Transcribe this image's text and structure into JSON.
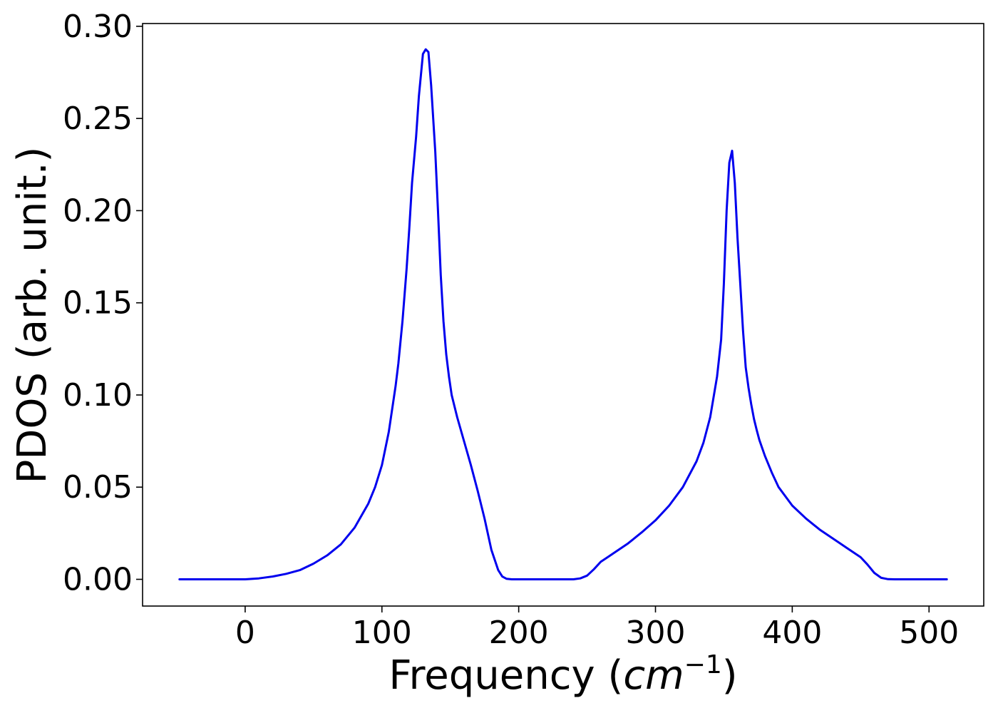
{
  "chart_data": {
    "type": "line",
    "xlabel": "Frequency (",
    "xlabel_unit": "cm",
    "xlabel_exponent": "−1",
    "xlabel_close": ")",
    "ylabel": "PDOS (arb. unit.)",
    "xlim": [
      -75,
      540
    ],
    "ylim": [
      -0.0145,
      0.3015
    ],
    "xticks": [
      0,
      100,
      200,
      300,
      400,
      500
    ],
    "xtick_labels": [
      "0",
      "100",
      "200",
      "300",
      "400",
      "500"
    ],
    "yticks": [
      0.0,
      0.05,
      0.1,
      0.15,
      0.2,
      0.25,
      0.3
    ],
    "ytick_labels": [
      "0.00",
      "0.05",
      "0.10",
      "0.15",
      "0.20",
      "0.25",
      "0.30"
    ],
    "grid": false,
    "line_color": "#0000ee",
    "series": [
      {
        "x": [
          -48,
          -20,
          0,
          10,
          20,
          30,
          40,
          50,
          60,
          70,
          80,
          90,
          95,
          100,
          105,
          110,
          112,
          115,
          118,
          120,
          122,
          125,
          127,
          130,
          132,
          134,
          136,
          139,
          141,
          143,
          145,
          147,
          149,
          151,
          155,
          160,
          165,
          170,
          175,
          180,
          185,
          188,
          191,
          195,
          200,
          210,
          220,
          230,
          240,
          245,
          250,
          255,
          260,
          265,
          270,
          280,
          290,
          300,
          310,
          320,
          330,
          335,
          340,
          345,
          348,
          350,
          352,
          354,
          356,
          358,
          360,
          362,
          364,
          366,
          368,
          370,
          372,
          374,
          376,
          380,
          385,
          390,
          400,
          410,
          420,
          430,
          440,
          450,
          455,
          460,
          465,
          470,
          475,
          480,
          490,
          500,
          513
        ],
        "y": [
          0.0,
          0.0,
          0.0,
          0.0005,
          0.0015,
          0.003,
          0.005,
          0.0085,
          0.013,
          0.019,
          0.028,
          0.041,
          0.05,
          0.062,
          0.08,
          0.105,
          0.117,
          0.14,
          0.168,
          0.19,
          0.215,
          0.24,
          0.262,
          0.285,
          0.2875,
          0.286,
          0.268,
          0.232,
          0.2,
          0.165,
          0.14,
          0.122,
          0.11,
          0.1,
          0.088,
          0.075,
          0.062,
          0.048,
          0.033,
          0.016,
          0.005,
          0.0015,
          0.0003,
          0.0,
          0.0,
          0.0,
          0.0,
          0.0,
          0.0,
          0.0005,
          0.002,
          0.0055,
          0.0095,
          0.012,
          0.0145,
          0.0195,
          0.0255,
          0.032,
          0.04,
          0.05,
          0.064,
          0.074,
          0.088,
          0.11,
          0.13,
          0.16,
          0.2,
          0.226,
          0.2325,
          0.215,
          0.185,
          0.16,
          0.135,
          0.115,
          0.104,
          0.095,
          0.087,
          0.081,
          0.0755,
          0.067,
          0.058,
          0.05,
          0.04,
          0.033,
          0.027,
          0.022,
          0.017,
          0.012,
          0.008,
          0.0035,
          0.0008,
          0.0001,
          0.0,
          0.0,
          0.0,
          0.0,
          0.0
        ]
      }
    ]
  }
}
